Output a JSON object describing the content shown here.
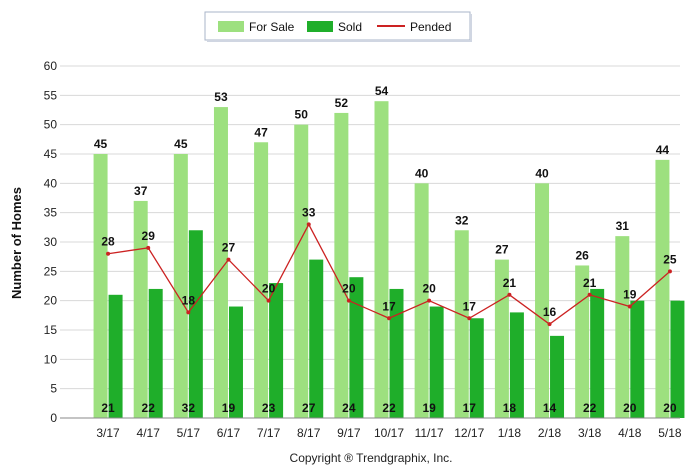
{
  "chart_data": {
    "type": "bar",
    "title": "",
    "xlabel": "",
    "ylabel": "Number of Homes",
    "ylim": [
      0,
      60
    ],
    "yticks": [
      0,
      5,
      10,
      15,
      20,
      25,
      30,
      35,
      40,
      45,
      50,
      55,
      60
    ],
    "grid": true,
    "legend_position": "top-center",
    "categories": [
      "3/17",
      "4/17",
      "5/17",
      "6/17",
      "7/17",
      "8/17",
      "9/17",
      "10/17",
      "11/17",
      "12/17",
      "1/18",
      "2/18",
      "3/18",
      "4/18",
      "5/18"
    ],
    "series": [
      {
        "name": "For Sale",
        "type": "bar",
        "color": "#9de07f",
        "values": [
          45,
          37,
          45,
          53,
          47,
          50,
          52,
          54,
          40,
          32,
          27,
          40,
          26,
          31,
          44
        ]
      },
      {
        "name": "Sold",
        "type": "bar",
        "color": "#1fae2a",
        "values": [
          21,
          22,
          32,
          19,
          23,
          27,
          24,
          22,
          19,
          17,
          18,
          14,
          22,
          20,
          20
        ]
      },
      {
        "name": "Pended",
        "type": "line",
        "color": "#cc2222",
        "values": [
          28,
          29,
          18,
          27,
          20,
          33,
          20,
          17,
          20,
          17,
          21,
          16,
          21,
          19,
          25
        ]
      }
    ],
    "footer": "Copyright ® Trendgraphix, Inc."
  }
}
